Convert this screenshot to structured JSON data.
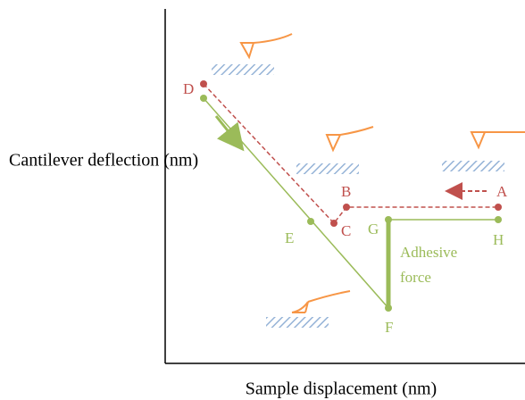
{
  "axes": {
    "y_label": "Cantilever deflection (nm)",
    "x_label": "Sample displacement (nm)"
  },
  "points": {
    "A": "A",
    "B": "B",
    "C": "C",
    "D": "D",
    "E": "E",
    "F": "F",
    "G": "G",
    "H": "H"
  },
  "annotation": {
    "line1": "Adhesive",
    "line2": "force"
  }
}
